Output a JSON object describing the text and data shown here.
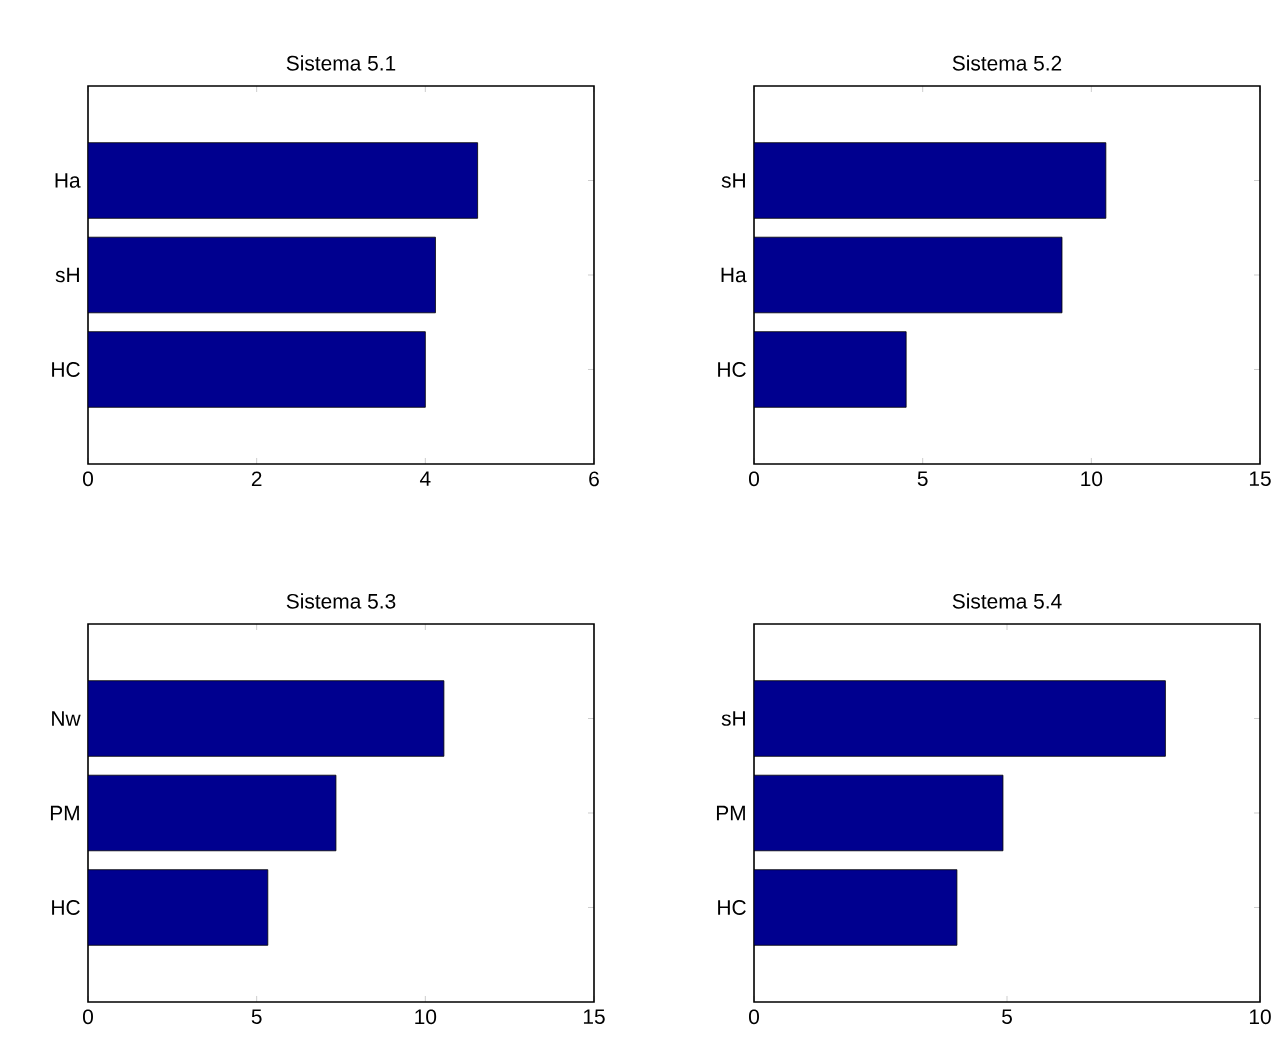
{
  "chart_data": [
    {
      "type": "bar",
      "orientation": "horizontal",
      "title": "Sistema 5.1",
      "categories": [
        "Ha",
        "sH",
        "HC"
      ],
      "values": [
        4.62,
        4.12,
        4.0
      ],
      "color": "#00008f",
      "xlim": [
        0,
        6
      ],
      "xticks": [
        0,
        2,
        4,
        6
      ]
    },
    {
      "type": "bar",
      "orientation": "horizontal",
      "title": "Sistema 5.2",
      "categories": [
        "sH",
        "Ha",
        "HC"
      ],
      "values": [
        10.43,
        9.13,
        4.51
      ],
      "color": "#00008f",
      "xlim": [
        0,
        15
      ],
      "xticks": [
        0,
        5,
        10,
        15
      ]
    },
    {
      "type": "bar",
      "orientation": "horizontal",
      "title": "Sistema 5.3",
      "categories": [
        "Nw",
        "PM",
        "HC"
      ],
      "values": [
        10.55,
        7.35,
        5.33
      ],
      "color": "#00008f",
      "xlim": [
        0,
        15
      ],
      "xticks": [
        0,
        5,
        10,
        15
      ]
    },
    {
      "type": "bar",
      "orientation": "horizontal",
      "title": "Sistema 5.4",
      "categories": [
        "sH",
        "PM",
        "HC"
      ],
      "values": [
        8.13,
        4.92,
        4.01
      ],
      "color": "#00008f",
      "xlim": [
        0,
        10
      ],
      "xticks": [
        0,
        5,
        10
      ]
    }
  ]
}
